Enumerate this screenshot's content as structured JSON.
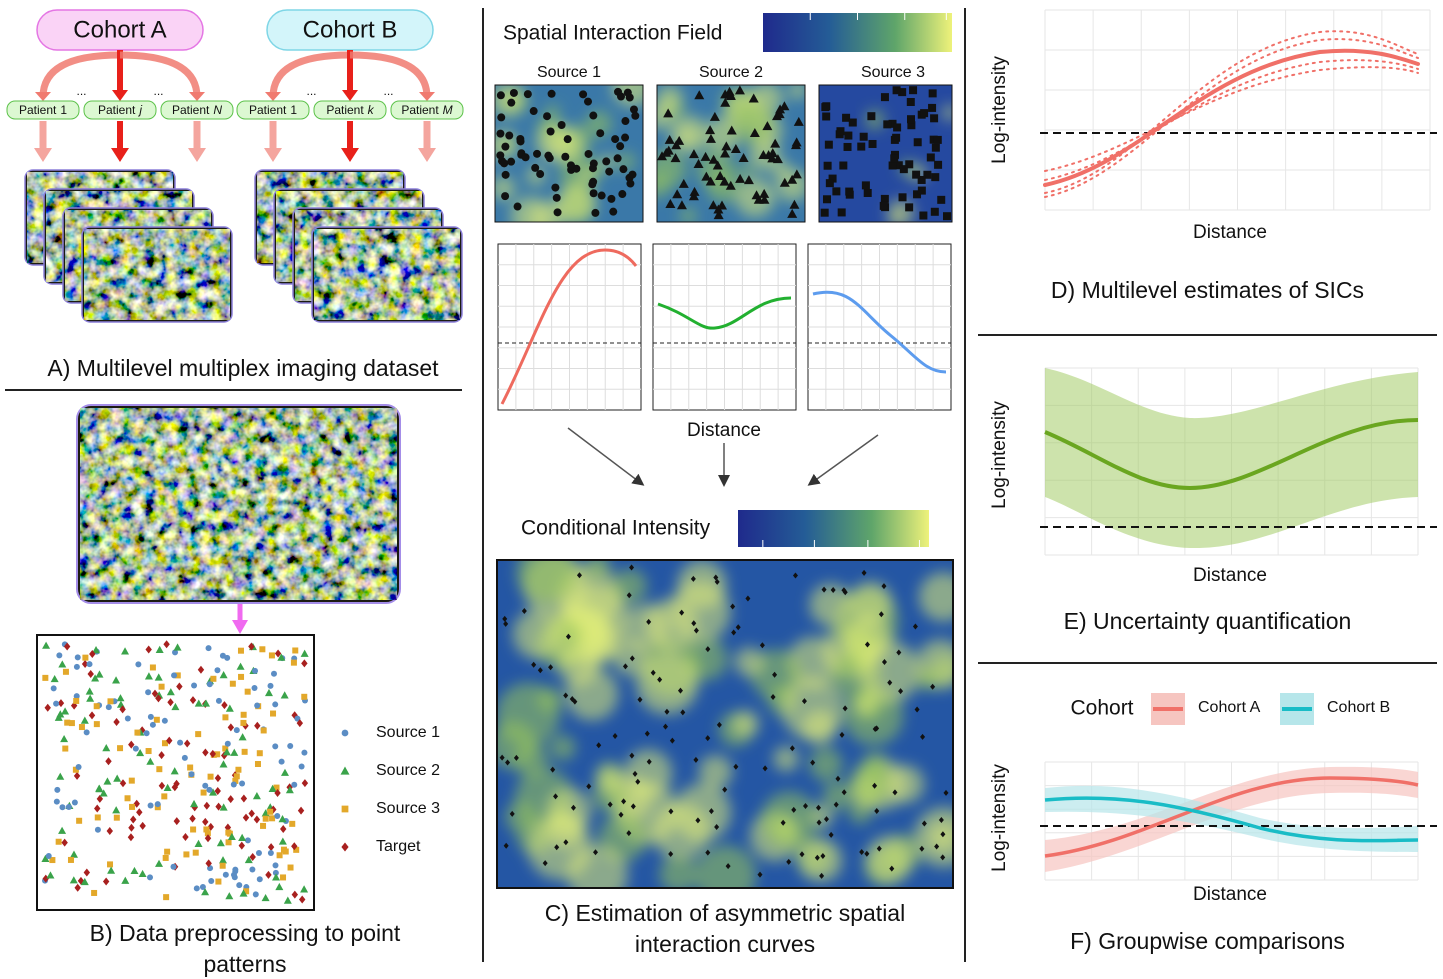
{
  "panel_a": {
    "cohorts": [
      {
        "name": "Cohort A",
        "patients": [
          {
            "label": "Patient",
            "index": "1"
          },
          {
            "label": "Patient",
            "index": "j"
          },
          {
            "label": "Patient",
            "index": "N"
          }
        ],
        "ellipses": [
          "...",
          "..."
        ]
      },
      {
        "name": "Cohort B",
        "patients": [
          {
            "label": "Patient",
            "index": "1"
          },
          {
            "label": "Patient",
            "index": "k"
          },
          {
            "label": "Patient",
            "index": "M"
          }
        ],
        "ellipses": [
          "...",
          "..."
        ]
      }
    ],
    "caption": "A) Multilevel multiplex imaging dataset"
  },
  "panel_b": {
    "legend": [
      "Source 1",
      "Source 2",
      "Source 3",
      "Target"
    ],
    "caption": "B) Data preprocessing to point patterns"
  },
  "panel_c": {
    "field_title": "Spatial Interaction Field",
    "sources": [
      "Source 1",
      "Source 2",
      "Source 3"
    ],
    "x_label": "Distance",
    "intensity_title": "Conditional Intensity",
    "caption": "C) Estimation of asymmetric spatial interaction curves"
  },
  "panel_d": {
    "y_label": "Log-intensity",
    "x_label": "Distance",
    "caption": "D) Multilevel estimates of SICs"
  },
  "panel_e": {
    "y_label": "Log-intensity",
    "x_label": "Distance",
    "caption": "E) Uncertainty quantification"
  },
  "panel_f": {
    "legend_title": "Cohort",
    "legend": [
      "Cohort A",
      "Cohort B"
    ],
    "y_label": "Log-intensity",
    "x_label": "Distance",
    "caption": "F) Groupwise comparisons"
  }
}
